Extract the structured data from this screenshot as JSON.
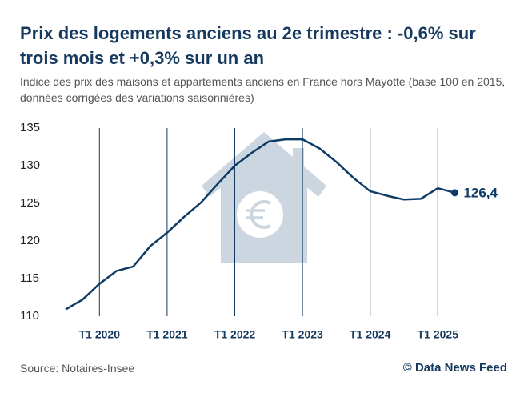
{
  "chart_data": {
    "type": "line",
    "title": "Prix des logements anciens au 2e trimestre : -0,6% sur trois mois et +0,3% sur un an",
    "subtitle": "Indice des prix des maisons et appartements anciens en France hors Mayotte (base 100 en 2015, données corrigées des variations saisonnières)",
    "source": "Source: Notaires-Insee",
    "credit": "© Data News Feed",
    "categories": [
      null,
      null,
      "T1 2020",
      null,
      null,
      null,
      "T1 2021",
      null,
      null,
      null,
      "T1 2022",
      null,
      null,
      null,
      "T1 2023",
      null,
      null,
      null,
      "T1 2024",
      null,
      null,
      null,
      "T1 2025",
      null
    ],
    "values": [
      110.9,
      112.2,
      114.3,
      116.0,
      116.6,
      119.3,
      121.1,
      123.2,
      125.1,
      127.6,
      130.0,
      131.7,
      133.2,
      133.5,
      133.5,
      132.3,
      130.5,
      128.4,
      126.6,
      126.0,
      125.5,
      125.6,
      127.0,
      126.4
    ],
    "value_labels": [
      null,
      null,
      null,
      null,
      null,
      null,
      null,
      null,
      null,
      null,
      null,
      null,
      null,
      null,
      null,
      null,
      null,
      null,
      null,
      null,
      null,
      null,
      null,
      "126,4"
    ],
    "color": "#0d3b66",
    "ylim": [
      110,
      135
    ],
    "yticks": [
      110,
      115,
      120,
      125,
      130,
      135
    ]
  }
}
